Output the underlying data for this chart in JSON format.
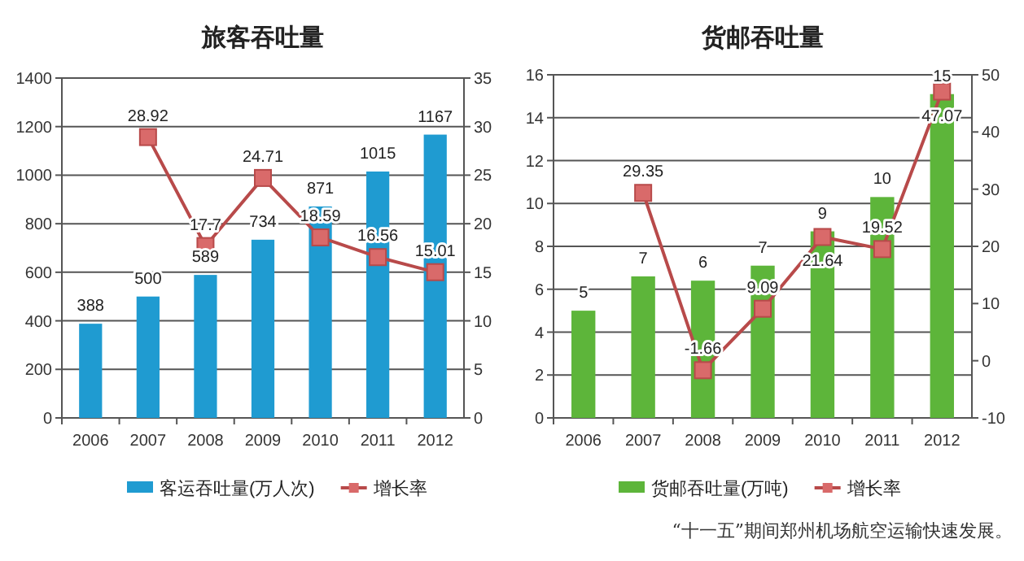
{
  "chart_data": [
    {
      "type": "bar",
      "title": "旅客吞吐量",
      "categories": [
        "2006",
        "2007",
        "2008",
        "2009",
        "2010",
        "2011",
        "2012"
      ],
      "series": [
        {
          "name": "客运吞吐量(万人次)",
          "color": "#1f9bd1",
          "values": [
            388,
            500,
            589,
            734,
            871,
            1015,
            1167
          ]
        },
        {
          "name": "增长率",
          "type": "line",
          "axis": "y2",
          "color": "#b84a4a",
          "marker": "square",
          "values": [
            null,
            28.92,
            17.7,
            24.71,
            18.59,
            16.56,
            15.01
          ]
        }
      ],
      "data_labels": true,
      "ylim": [
        0,
        1400
      ],
      "yticks": [
        0,
        200,
        400,
        600,
        800,
        1000,
        1200,
        1400
      ],
      "y2lim": [
        0,
        35
      ],
      "y2ticks": [
        0,
        5,
        10,
        15,
        20,
        25,
        30,
        35
      ],
      "grid": "y",
      "legend": "bottom"
    },
    {
      "type": "bar",
      "title": "货邮吞吐量",
      "categories": [
        "2006",
        "2007",
        "2008",
        "2009",
        "2010",
        "2011",
        "2012"
      ],
      "series": [
        {
          "name": "货邮吞吐量(万吨)",
          "color": "#5db53a",
          "values": [
            5.0,
            6.6,
            6.4,
            7.1,
            8.7,
            10.3,
            15.1
          ],
          "value_labels": [
            "5",
            "7",
            "6",
            "7",
            "9",
            "10",
            "15"
          ]
        },
        {
          "name": "增长率",
          "type": "line",
          "axis": "y2",
          "color": "#b84a4a",
          "marker": "square",
          "values": [
            null,
            29.35,
            -1.66,
            9.09,
            21.64,
            19.52,
            47.07
          ],
          "value_labels": [
            null,
            "29.35",
            "-1.66",
            "9.09",
            "21.64",
            "19.52",
            "47.07"
          ]
        }
      ],
      "ylim": [
        0,
        16
      ],
      "yticks": [
        0,
        2,
        4,
        6,
        8,
        10,
        12,
        14,
        16
      ],
      "y2lim": [
        -10,
        50
      ],
      "y2ticks": [
        -10,
        0,
        10,
        20,
        30,
        40,
        50
      ],
      "grid": "y",
      "legend": "bottom",
      "annotations": [
        "“十一五”期间郑州机场航空运输快速发展。"
      ]
    }
  ]
}
